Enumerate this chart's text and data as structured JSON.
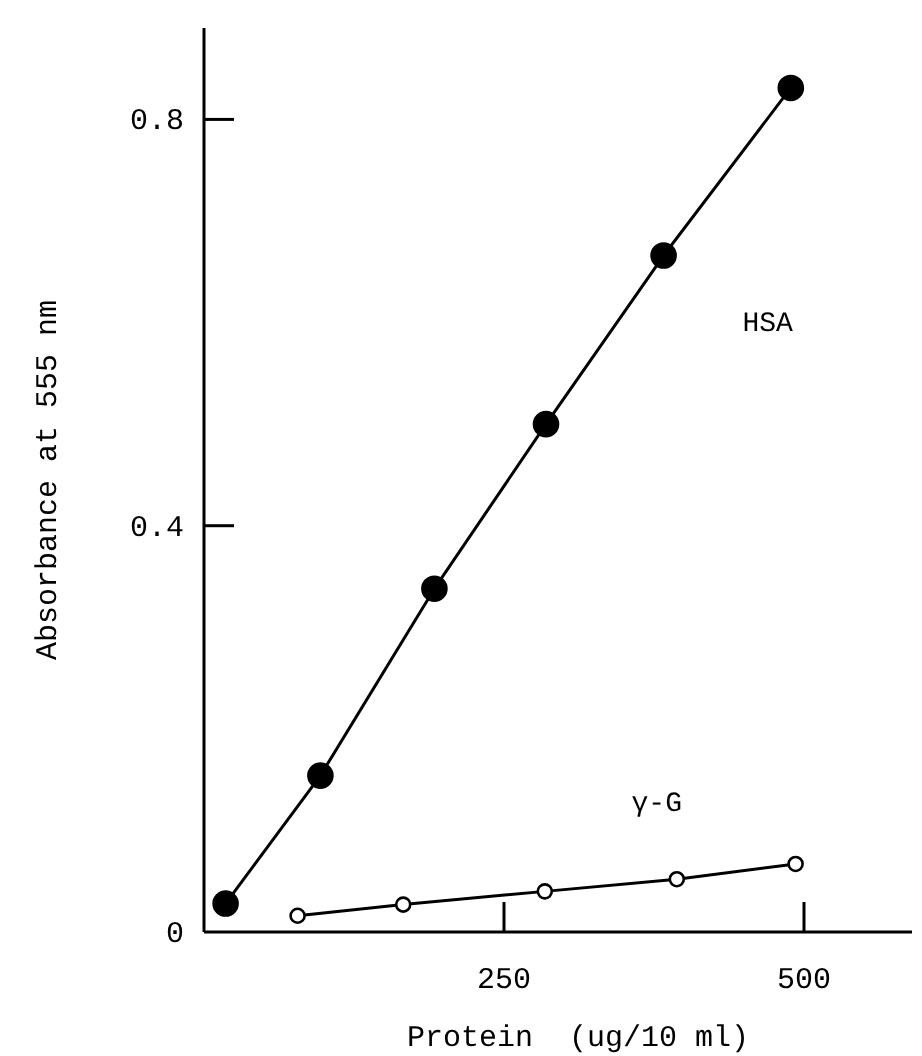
{
  "chart_data": {
    "type": "line",
    "xlabel": "Protein  (ug/10 ml)",
    "ylabel": "Absorbance at 555 nm",
    "xlim": [
      0,
      590
    ],
    "ylim": [
      0,
      0.89
    ],
    "xticks": [
      250,
      500
    ],
    "yticks": [
      0,
      0.4,
      0.8
    ],
    "grid": false,
    "marker": "circle",
    "line_style": "solid",
    "series": [
      {
        "name": "HSA",
        "color": "#000000",
        "x": [
          18,
          97,
          192,
          285,
          383,
          489
        ],
        "values": [
          0.028,
          0.154,
          0.338,
          0.5,
          0.666,
          0.831
        ]
      },
      {
        "name": "γ-G",
        "color": "#000000",
        "x": [
          78,
          166,
          284,
          394,
          493
        ],
        "values": [
          0.016,
          0.027,
          0.04,
          0.052,
          0.067
        ]
      }
    ]
  }
}
